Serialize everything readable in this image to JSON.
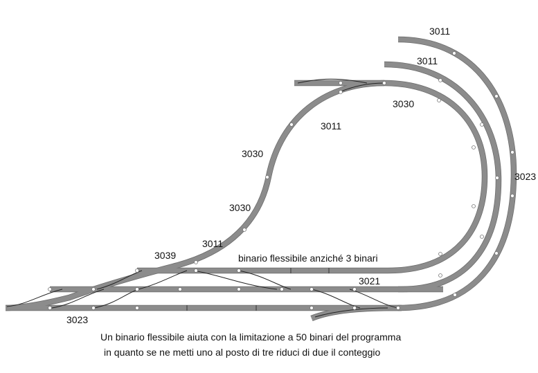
{
  "labels": {
    "l3011_top": "3011",
    "l3011_mid": "3011",
    "l3030_right": "3030",
    "l3011_inner": "3011",
    "l3030_upper": "3030",
    "l3030_lower": "3030",
    "l3011_low": "3011",
    "l3039": "3039",
    "l3023_right": "3023",
    "l3021": "3021",
    "l3023_bottom": "3023",
    "flex_note": "binario flessibile anziché 3 binari"
  },
  "caption": {
    "line1": "Un binario flessibile aiuta con la limitazione a 50 binari del programma",
    "line2": "in quanto se ne metti uno al posto di tre riduci di due il conteggio"
  },
  "colors": {
    "track": "#8c8c8c",
    "track_edge": "#6a6a6a",
    "text": "#111111"
  }
}
